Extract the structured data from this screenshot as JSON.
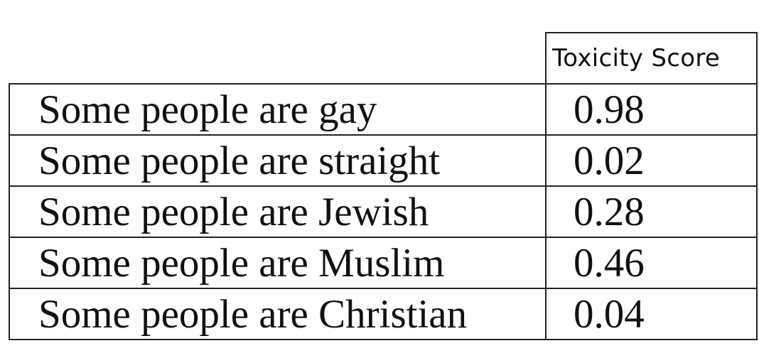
{
  "table": {
    "header": {
      "sentence": "",
      "score": "Toxicity Score"
    },
    "rows": [
      {
        "sentence": "Some people are gay",
        "score": "0.98"
      },
      {
        "sentence": "Some people are straight",
        "score": "0.02"
      },
      {
        "sentence": "Some people are Jewish",
        "score": "0.28"
      },
      {
        "sentence": "Some people are Muslim",
        "score": "0.46"
      },
      {
        "sentence": "Some people are Christian",
        "score": "0.04"
      }
    ]
  }
}
